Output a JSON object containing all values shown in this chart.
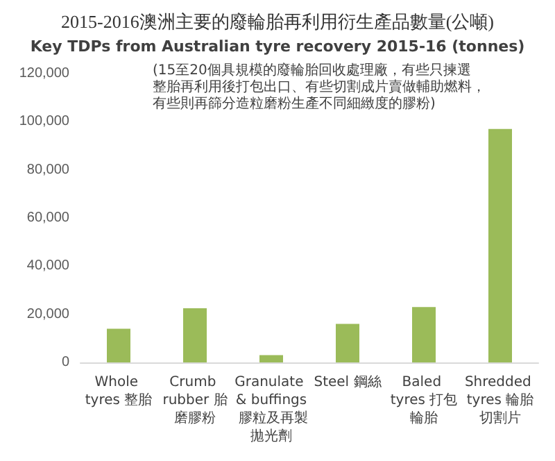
{
  "chart_data": {
    "type": "bar",
    "title": "2015-2016澳洲主要的廢輪胎再利用衍生產品數量(公噸)",
    "subtitle": "Key TDPs from Australian tyre recovery 2015-16 (tonnes)",
    "annotations": [
      "(15至20個具規模的廢輪胎回收處理廠，有些只揀選整胎再利用後打包出口、有些切割成片賣做輔助燃料，有些則再篩分造粒磨粉生產不同細緻度的膠粉)"
    ],
    "categories": [
      "Whole tyres 整胎",
      "Crumb rubber 胎磨膠粉",
      "Granulate & buffings 膠粒及再製拋光劑",
      "Steel 鋼絲",
      "Baled tyres 打包輪胎",
      "Shredded tyres 輪胎切割片"
    ],
    "values": [
      14000,
      22500,
      3000,
      16000,
      23000,
      97000
    ],
    "color": "#9bbb59",
    "ylim": [
      0,
      120000
    ],
    "yticks": [
      0,
      {
        "value": 20000,
        "label": "20,000"
      },
      {
        "value": 40000,
        "label": "40,000"
      },
      {
        "value": 60000,
        "label": "60,000"
      },
      {
        "value": 80000,
        "label": "80,000"
      },
      {
        "value": 100000,
        "label": "100,000"
      },
      {
        "value": 120000,
        "label": "120,000"
      }
    ],
    "grid": false
  }
}
